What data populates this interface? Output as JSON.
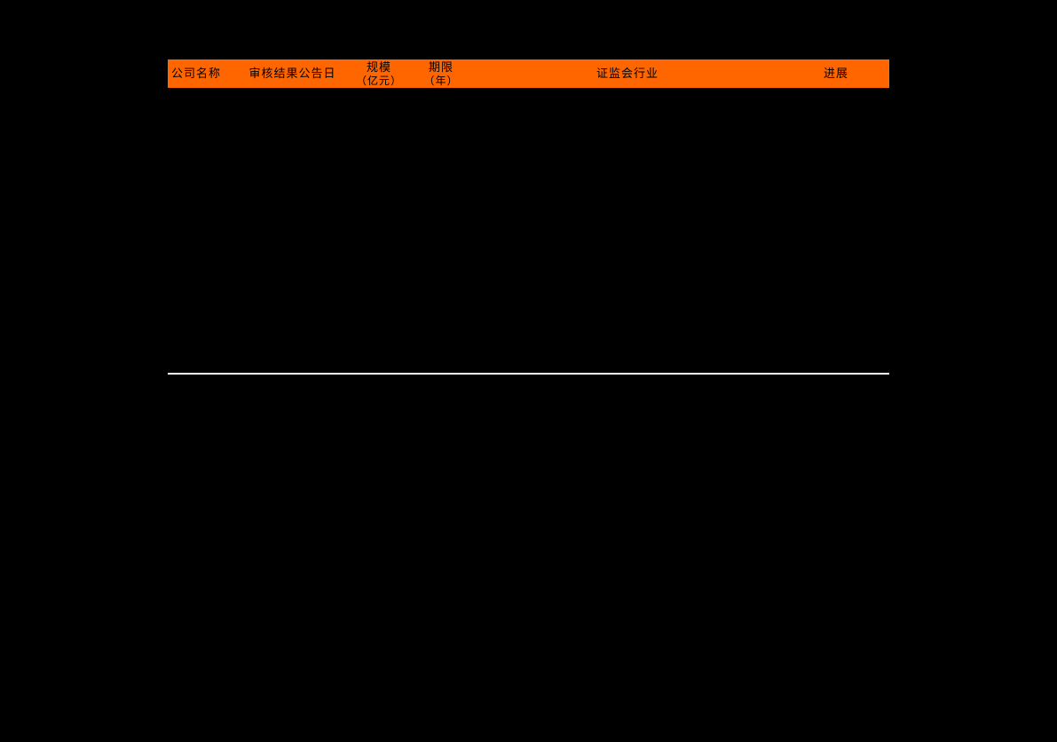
{
  "table": {
    "header_bg_color": "#ff6600",
    "header_text_color": "#000000",
    "columns": [
      {
        "label": "公司名称",
        "sub": ""
      },
      {
        "label": "审核结果公告日",
        "sub": ""
      },
      {
        "label": "规模",
        "sub": "（亿元）"
      },
      {
        "label": "期限",
        "sub": "（年）"
      },
      {
        "label": "证监会行业",
        "sub": ""
      },
      {
        "label": "进展",
        "sub": ""
      }
    ],
    "divider_color": "#ffffff",
    "background_color": "#000000"
  }
}
